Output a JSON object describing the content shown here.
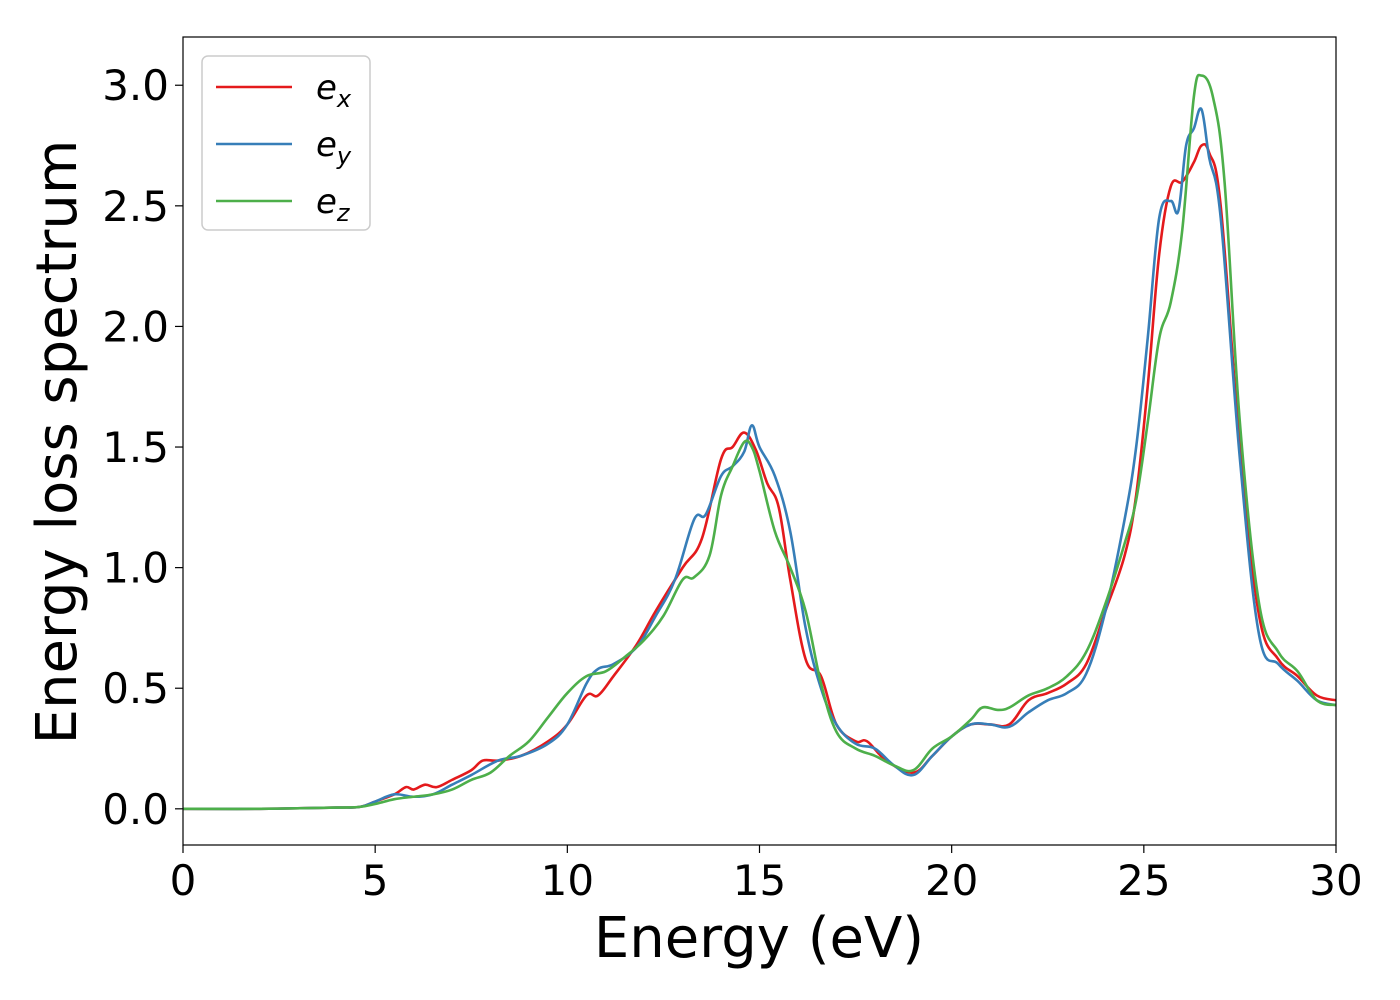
{
  "chart_data": {
    "type": "line",
    "title": "",
    "xlabel": "Energy (eV)",
    "ylabel": "Energy loss spectrum",
    "xlim": [
      0,
      30
    ],
    "ylim": [
      -0.15,
      3.2
    ],
    "xticks": [
      0,
      5,
      10,
      15,
      20,
      25,
      30
    ],
    "yticks": [
      0.0,
      0.5,
      1.0,
      1.5,
      2.0,
      2.5,
      3.0
    ],
    "xtick_labels": [
      "0",
      "5",
      "10",
      "15",
      "20",
      "25",
      "30"
    ],
    "ytick_labels": [
      "0.0",
      "0.5",
      "1.0",
      "1.5",
      "2.0",
      "2.5",
      "3.0"
    ],
    "grid": false,
    "legend_position": "top-left",
    "series": [
      {
        "name": "e_x",
        "label_base": "e",
        "label_sub": "x",
        "color": "#e41a1c",
        "x": [
          0,
          2,
          4,
          4.6,
          5,
          5.5,
          5.8,
          6.0,
          6.3,
          6.6,
          7,
          7.5,
          7.8,
          8.2,
          8.8,
          9.5,
          10,
          10.5,
          10.8,
          11.2,
          11.8,
          12.3,
          13.0,
          13.5,
          14.0,
          14.3,
          14.6,
          14.9,
          15.2,
          15.5,
          15.8,
          16.2,
          16.6,
          17.0,
          17.5,
          17.8,
          18.3,
          19.0,
          19.5,
          20.0,
          20.5,
          21.0,
          21.5,
          22.0,
          22.5,
          23.0,
          23.5,
          24.0,
          24.5,
          24.8,
          25.1,
          25.4,
          25.7,
          26.0,
          26.3,
          26.5,
          26.7,
          27.0,
          27.5,
          28.0,
          28.5,
          29.0,
          29.5,
          30
        ],
        "y": [
          0.0,
          0.0,
          0.005,
          0.008,
          0.03,
          0.06,
          0.09,
          0.08,
          0.1,
          0.09,
          0.12,
          0.16,
          0.2,
          0.2,
          0.22,
          0.28,
          0.35,
          0.47,
          0.47,
          0.55,
          0.68,
          0.82,
          1.0,
          1.12,
          1.45,
          1.5,
          1.56,
          1.49,
          1.35,
          1.25,
          0.95,
          0.62,
          0.55,
          0.35,
          0.28,
          0.28,
          0.2,
          0.15,
          0.22,
          0.3,
          0.35,
          0.35,
          0.35,
          0.45,
          0.48,
          0.52,
          0.6,
          0.82,
          1.05,
          1.3,
          1.75,
          2.3,
          2.58,
          2.6,
          2.68,
          2.75,
          2.72,
          2.5,
          1.5,
          0.8,
          0.62,
          0.55,
          0.47,
          0.45
        ]
      },
      {
        "name": "e_y",
        "label_base": "e",
        "label_sub": "y",
        "color": "#377eb8",
        "x": [
          0,
          2,
          4,
          4.6,
          5,
          5.5,
          6.0,
          6.5,
          7,
          7.5,
          8.2,
          8.8,
          9.5,
          10,
          10.5,
          10.8,
          11.2,
          11.8,
          12.3,
          12.8,
          13.3,
          13.6,
          14.0,
          14.3,
          14.6,
          14.8,
          15.0,
          15.4,
          15.8,
          16.2,
          16.6,
          17.0,
          17.5,
          18.0,
          18.5,
          19.0,
          19.5,
          20.0,
          20.5,
          21.0,
          21.5,
          22.0,
          22.5,
          23.0,
          23.5,
          24.0,
          24.5,
          24.8,
          25.1,
          25.4,
          25.7,
          25.9,
          26.1,
          26.3,
          26.5,
          26.7,
          27.0,
          27.5,
          28.0,
          28.5,
          29.0,
          29.5,
          30
        ],
        "y": [
          0.0,
          0.0,
          0.005,
          0.008,
          0.03,
          0.06,
          0.05,
          0.06,
          0.1,
          0.14,
          0.2,
          0.22,
          0.27,
          0.35,
          0.52,
          0.58,
          0.6,
          0.67,
          0.8,
          0.95,
          1.2,
          1.22,
          1.38,
          1.42,
          1.48,
          1.59,
          1.5,
          1.38,
          1.15,
          0.75,
          0.5,
          0.35,
          0.27,
          0.25,
          0.18,
          0.14,
          0.22,
          0.3,
          0.35,
          0.35,
          0.34,
          0.4,
          0.45,
          0.48,
          0.56,
          0.82,
          1.2,
          1.5,
          1.95,
          2.45,
          2.52,
          2.48,
          2.75,
          2.82,
          2.9,
          2.7,
          2.45,
          1.45,
          0.72,
          0.6,
          0.53,
          0.45,
          0.43
        ]
      },
      {
        "name": "e_z",
        "label_base": "e",
        "label_sub": "z",
        "color": "#4daf4a",
        "x": [
          0,
          2,
          4,
          4.6,
          5,
          5.5,
          6.0,
          6.5,
          7,
          7.5,
          8.0,
          8.5,
          9.0,
          9.5,
          10.0,
          10.5,
          11.0,
          11.5,
          12.0,
          12.5,
          13.0,
          13.3,
          13.7,
          14.0,
          14.3,
          14.6,
          14.8,
          15.0,
          15.4,
          15.8,
          16.2,
          16.6,
          17.0,
          17.5,
          18.0,
          18.5,
          19.0,
          19.5,
          20.0,
          20.5,
          20.8,
          21.2,
          21.5,
          22.0,
          22.5,
          23.0,
          23.5,
          24.0,
          24.5,
          24.8,
          25.1,
          25.4,
          25.7,
          26.0,
          26.3,
          26.5,
          26.8,
          27.1,
          27.5,
          28.0,
          28.5,
          29.0,
          29.5,
          30
        ],
        "y": [
          0.0,
          0.0,
          0.005,
          0.008,
          0.02,
          0.04,
          0.05,
          0.06,
          0.08,
          0.12,
          0.15,
          0.22,
          0.28,
          0.38,
          0.48,
          0.55,
          0.57,
          0.63,
          0.7,
          0.8,
          0.95,
          0.96,
          1.05,
          1.3,
          1.42,
          1.52,
          1.5,
          1.4,
          1.15,
          1.0,
          0.82,
          0.52,
          0.32,
          0.25,
          0.22,
          0.18,
          0.16,
          0.25,
          0.3,
          0.37,
          0.42,
          0.41,
          0.42,
          0.47,
          0.5,
          0.55,
          0.65,
          0.85,
          1.1,
          1.28,
          1.6,
          1.95,
          2.1,
          2.4,
          2.95,
          3.04,
          2.95,
          2.6,
          1.6,
          0.85,
          0.65,
          0.57,
          0.45,
          0.43
        ]
      }
    ]
  }
}
